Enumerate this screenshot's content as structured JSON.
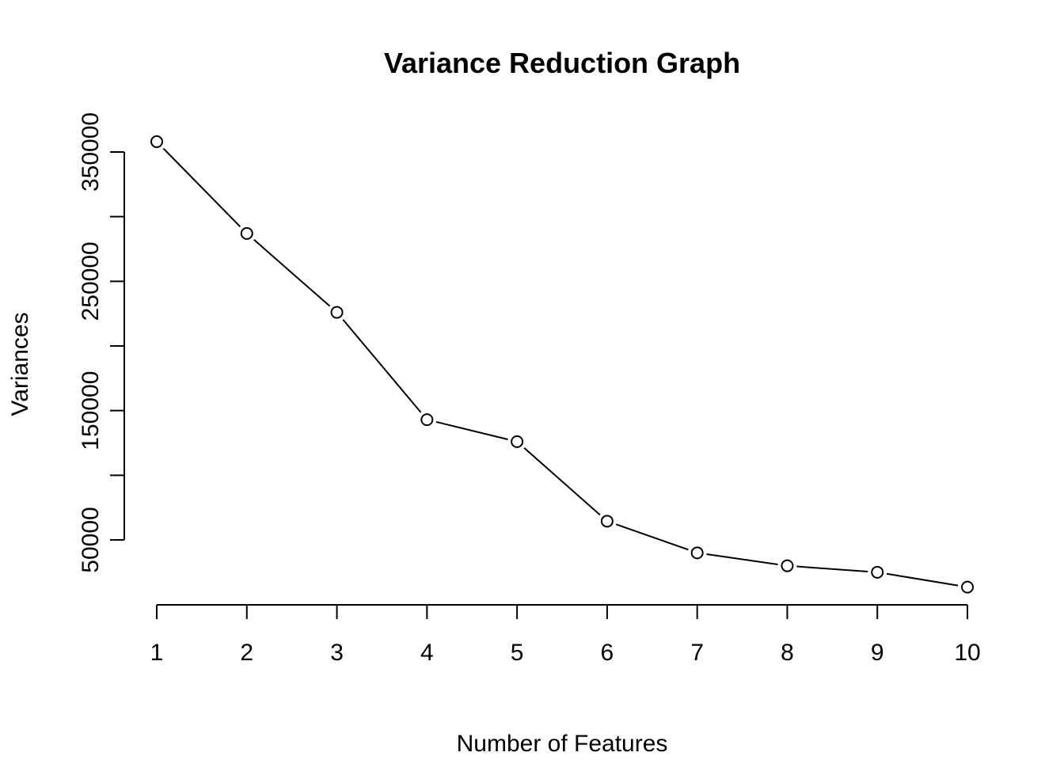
{
  "chart_data": {
    "type": "line",
    "title": "Variance Reduction Graph",
    "xlabel": "Number of Features",
    "ylabel": "Variances",
    "x": [
      1,
      2,
      3,
      4,
      5,
      6,
      7,
      8,
      9,
      10
    ],
    "series": [
      {
        "values": [
          358000,
          287000,
          226000,
          143000,
          126000,
          64500,
          40000,
          30000,
          25000,
          13500
        ]
      }
    ],
    "x_ticks": [
      1,
      2,
      3,
      4,
      5,
      6,
      7,
      8,
      9,
      10
    ],
    "x_tick_labels": [
      "1",
      "2",
      "3",
      "4",
      "5",
      "6",
      "7",
      "8",
      "9",
      "10"
    ],
    "y_ticks": [
      50000,
      100000,
      150000,
      200000,
      250000,
      300000,
      350000
    ],
    "y_tick_labels": [
      "50000",
      "",
      "150000",
      "",
      "250000",
      "",
      "350000"
    ],
    "xlim": [
      1,
      10
    ],
    "ylim": [
      50000,
      350000
    ],
    "marker": "open-circle",
    "line_color": "#000000",
    "grid": false,
    "legend": "none"
  }
}
